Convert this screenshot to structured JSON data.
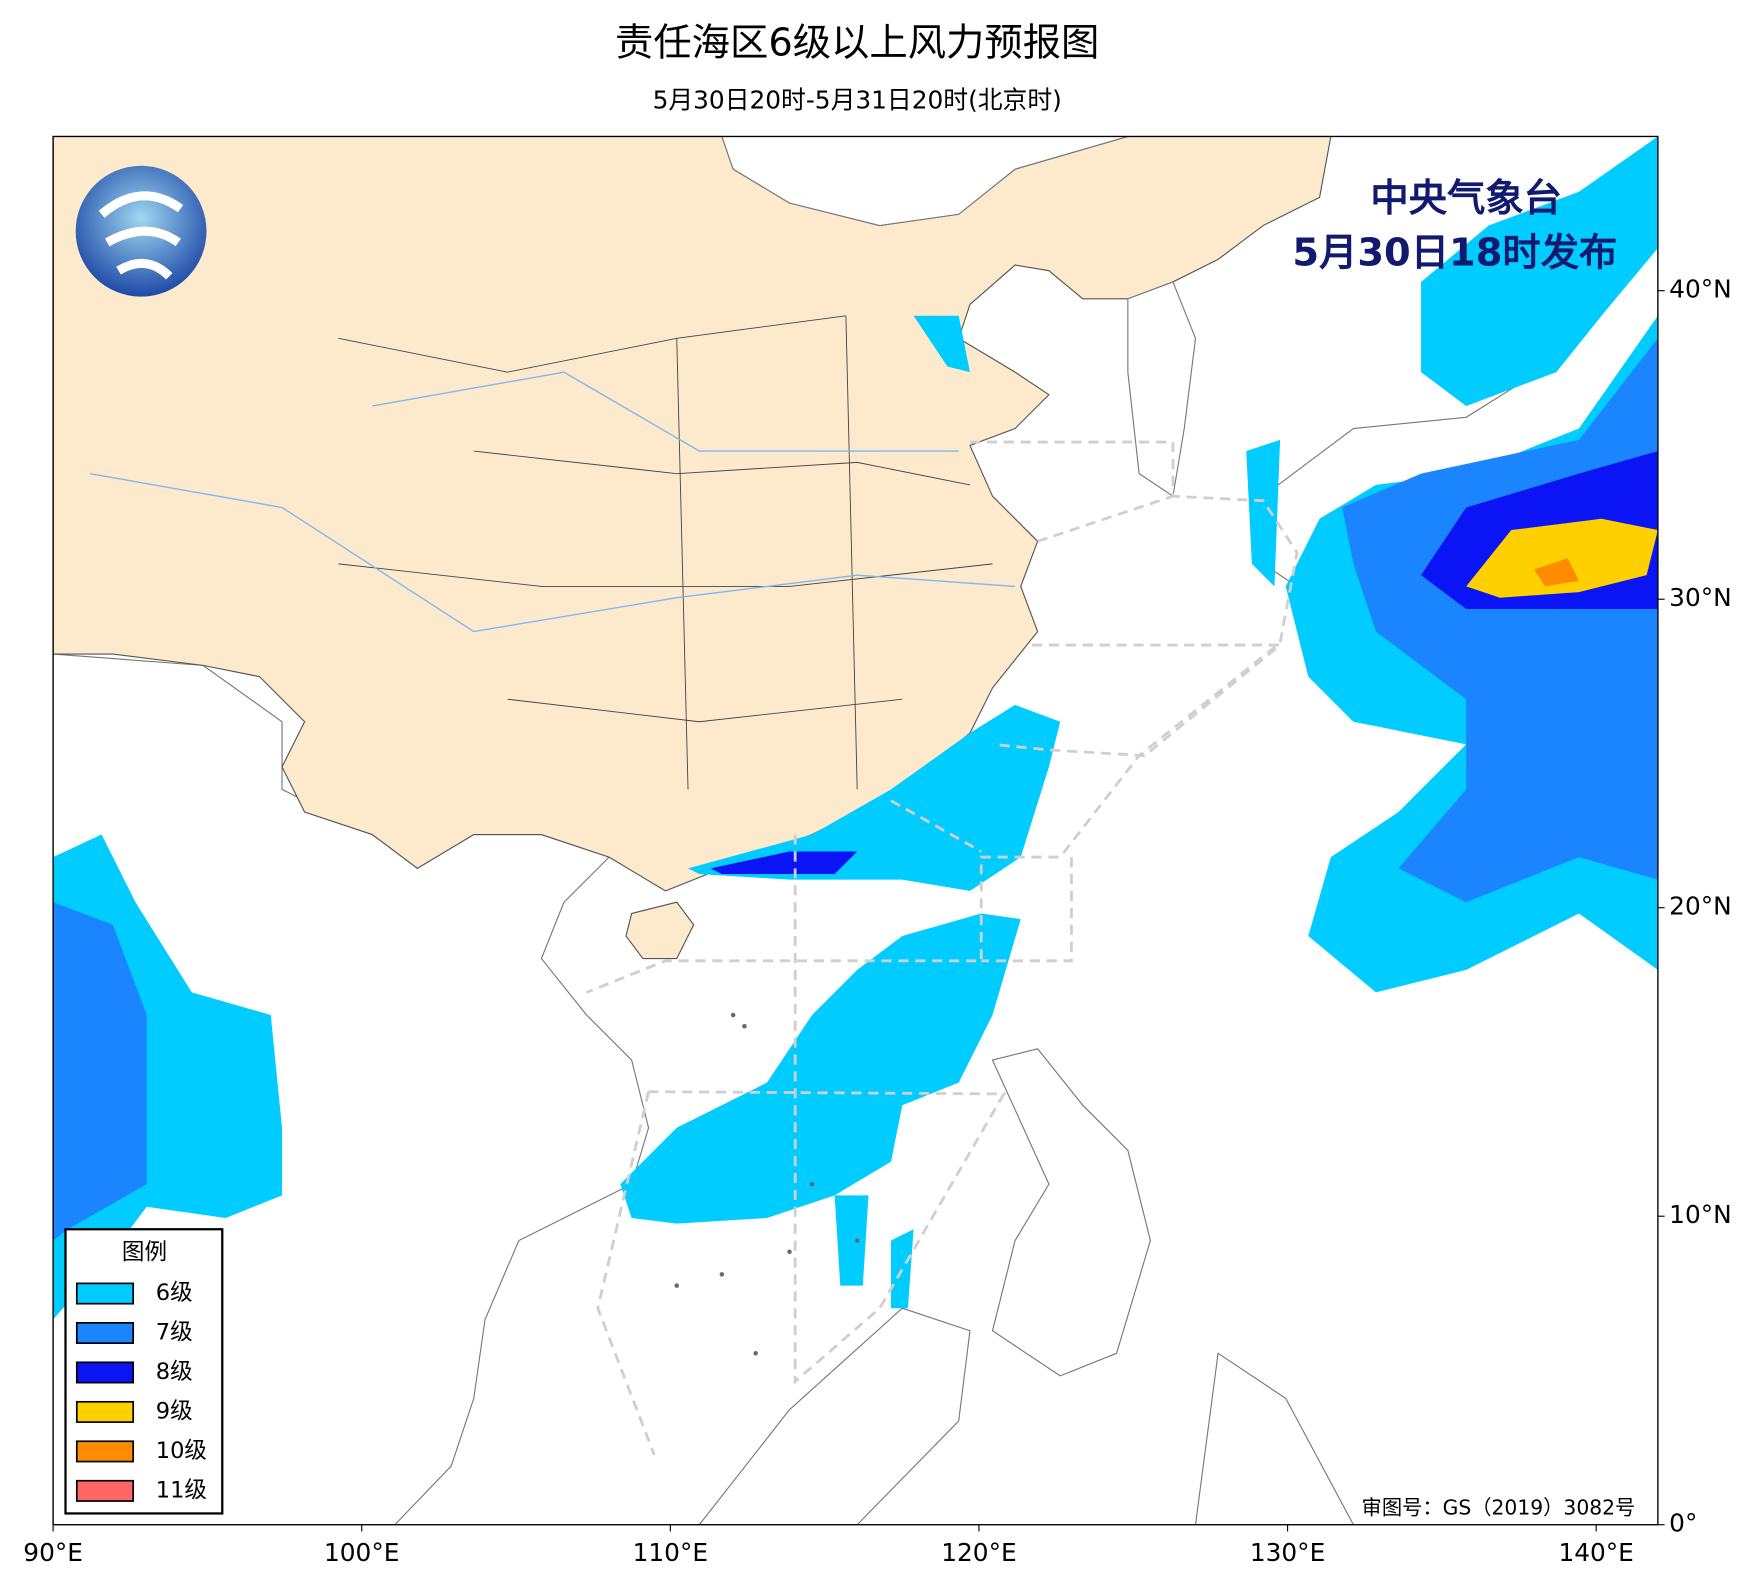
{
  "chart_data": {
    "type": "map",
    "title": "责任海区6级以上风力预报图",
    "subtitle": "5月30日20时-5月31日20时(北京时)",
    "agency": "中央气象台",
    "issued": "5月30日18时发布",
    "approval": "审图号：GS（2019）3082号",
    "xlim": [
      90,
      142
    ],
    "ylim": [
      0,
      45
    ],
    "xticks": [
      {
        "value": 90,
        "label": "90°E"
      },
      {
        "value": 100,
        "label": "100°E"
      },
      {
        "value": 110,
        "label": "110°E"
      },
      {
        "value": 120,
        "label": "120°E"
      },
      {
        "value": 130,
        "label": "130°E"
      },
      {
        "value": 140,
        "label": "140°E"
      }
    ],
    "yticks": [
      {
        "value": 0,
        "label": "0°"
      },
      {
        "value": 10,
        "label": "10°N"
      },
      {
        "value": 20,
        "label": "20°N"
      },
      {
        "value": 30,
        "label": "30°N"
      },
      {
        "value": 40,
        "label": "40°N"
      }
    ],
    "legend": {
      "title": "图例",
      "items": [
        {
          "name": "6级",
          "color": "#00ccff"
        },
        {
          "name": "7级",
          "color": "#1a85ff"
        },
        {
          "name": "8级",
          "color": "#0a14f5"
        },
        {
          "name": "9级",
          "color": "#ffd000"
        },
        {
          "name": "10级",
          "color": "#ff8c00"
        },
        {
          "name": "11级",
          "color": "#ff6666"
        }
      ]
    }
  }
}
